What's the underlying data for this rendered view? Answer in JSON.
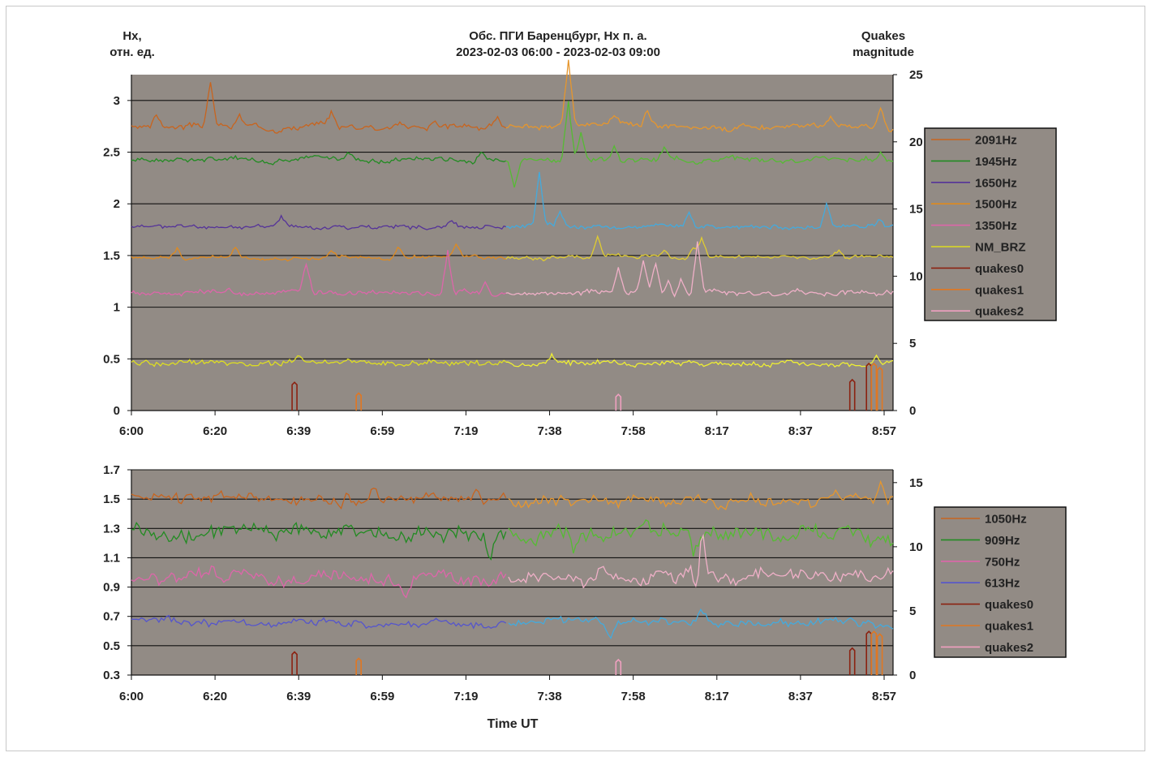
{
  "header": {
    "left_label_1": "Hx,",
    "left_label_2": "отн. ед.",
    "title_1": "Обс. ПГИ Баренцбург,  Hx п. а.",
    "title_2": "2023-02-03 06:00 - 2023-02-03 09:00",
    "right_label_1": "Quakes",
    "right_label_2": "magnitude"
  },
  "footer": {
    "xlabel": "Time UT"
  },
  "chart_data": [
    {
      "type": "line",
      "x_tick_labels": [
        "6:00",
        "6:20",
        "6:39",
        "6:59",
        "7:19",
        "7:38",
        "7:58",
        "8:17",
        "8:37",
        "8:57"
      ],
      "x_range_minutes": [
        0,
        183
      ],
      "ylim": [
        0,
        3.25
      ],
      "y_ticks": [
        0,
        0.5,
        1,
        1.5,
        2,
        2.5,
        3
      ],
      "y_tick_labels": [
        "0",
        "0.5",
        "1",
        "1.5",
        "2",
        "2.5",
        "3"
      ],
      "y2lim": [
        0,
        25
      ],
      "y2_ticks": [
        0,
        5,
        10,
        15,
        20,
        25
      ],
      "y2_tick_labels": [
        "0",
        "5",
        "10",
        "15",
        "20",
        "25"
      ],
      "legend": [
        "2091Hz",
        "1945Hz",
        "1650Hz",
        "1500Hz",
        "1350Hz",
        "NM_BRZ",
        "quakes0",
        "quakes1",
        "quakes2"
      ],
      "series": [
        {
          "name": "2091Hz",
          "base": 2.75,
          "amp": 0.035,
          "color": "#c8641e",
          "color2": "#e6962d",
          "seed": 3,
          "spikes": [
            [
              6,
              0.13
            ],
            [
              19,
              0.42
            ],
            [
              26,
              0.1
            ],
            [
              48,
              0.13
            ],
            [
              73,
              0.08
            ],
            [
              88,
              0.07
            ],
            [
              105,
              0.6
            ],
            [
              116,
              0.09
            ],
            [
              124,
              0.15
            ],
            [
              168,
              0.08
            ],
            [
              180,
              0.18
            ]
          ]
        },
        {
          "name": "1945Hz",
          "base": 2.43,
          "amp": 0.03,
          "color": "#228b22",
          "color2": "#55bb33",
          "seed": 7,
          "spikes": [
            [
              52,
              0.08
            ],
            [
              84,
              0.08
            ],
            [
              92,
              -0.25
            ],
            [
              105,
              0.55
            ],
            [
              108,
              0.25
            ],
            [
              116,
              0.15
            ],
            [
              128,
              0.12
            ],
            [
              180,
              0.08
            ]
          ]
        },
        {
          "name": "1650Hz",
          "base": 1.78,
          "amp": 0.025,
          "color": "#553399",
          "color2": "#44aadd",
          "seed": 11,
          "spikes": [
            [
              36,
              0.1
            ],
            [
              77,
              0.06
            ],
            [
              98,
              0.5
            ],
            [
              103,
              0.15
            ],
            [
              134,
              0.13
            ],
            [
              167,
              0.22
            ],
            [
              180,
              0.07
            ]
          ]
        },
        {
          "name": "1500Hz",
          "base": 1.48,
          "amp": 0.022,
          "color": "#e08a1e",
          "color2": "#e0cc30",
          "seed": 13,
          "spikes": [
            [
              11,
              0.1
            ],
            [
              25,
              0.1
            ],
            [
              48,
              0.08
            ],
            [
              64,
              0.1
            ],
            [
              78,
              0.12
            ],
            [
              112,
              0.2
            ],
            [
              128,
              0.08
            ],
            [
              135,
              0.1
            ],
            [
              137,
              0.18
            ],
            [
              170,
              0.06
            ]
          ]
        },
        {
          "name": "1350Hz",
          "base": 1.14,
          "amp": 0.03,
          "color": "#dd66aa",
          "color2": "#f0b0c8",
          "seed": 17,
          "spikes": [
            [
              42,
              0.28
            ],
            [
              76,
              0.42
            ],
            [
              85,
              0.12
            ],
            [
              117,
              0.22
            ],
            [
              123,
              0.3
            ],
            [
              126,
              0.28
            ],
            [
              129,
              0.15
            ],
            [
              132,
              0.15
            ],
            [
              136,
              0.5
            ]
          ]
        },
        {
          "name": "NM_BRZ",
          "base": 0.46,
          "amp": 0.035,
          "color": "#dddd22",
          "color2": "#eeee33",
          "seed": 19,
          "spikes": [
            [
              40,
              0.07
            ],
            [
              101,
              0.09
            ],
            [
              179,
              0.11
            ]
          ]
        }
      ],
      "quakes": [
        {
          "name": "quakes0",
          "color": "#8b2211",
          "events": [
            [
              39.2,
              2.1
            ],
            [
              173.2,
              2.3
            ],
            [
              177.2,
              3.5
            ]
          ]
        },
        {
          "name": "quakes1",
          "color": "#e07722",
          "events": [
            [
              54.6,
              1.3
            ],
            [
              178.4,
              3.5
            ],
            [
              179.8,
              3.2
            ]
          ]
        },
        {
          "name": "quakes2",
          "color": "#f0a0c0",
          "events": [
            [
              117,
              1.2
            ]
          ]
        }
      ]
    },
    {
      "type": "line",
      "x_tick_labels": [
        "6:00",
        "6:20",
        "6:39",
        "6:59",
        "7:19",
        "7:38",
        "7:58",
        "8:17",
        "8:37",
        "8:57"
      ],
      "x_range_minutes": [
        0,
        183
      ],
      "ylim": [
        0.3,
        1.7
      ],
      "y_ticks": [
        0.3,
        0.5,
        0.7,
        0.9,
        1.1,
        1.3,
        1.5,
        1.7
      ],
      "y_tick_labels": [
        "0.3",
        "0.5",
        "0.7",
        "0.9",
        "1.1",
        "1.3",
        "1.5",
        "1.7"
      ],
      "y2lim": [
        0,
        16
      ],
      "y2_ticks": [
        0,
        5,
        10,
        15
      ],
      "y2_tick_labels": [
        "0",
        "5",
        "10",
        "15"
      ],
      "legend": [
        "1050Hz",
        "909Hz",
        "750Hz",
        "613Hz",
        "quakes0",
        "quakes1",
        "quakes2"
      ],
      "series": [
        {
          "name": "1050Hz",
          "base": 1.5,
          "amp": 0.05,
          "color": "#c8641e",
          "color2": "#e6962d",
          "seed": 23,
          "spikes": [
            [
              52,
              0.12
            ],
            [
              58,
              0.1
            ],
            [
              83,
              0.08
            ],
            [
              180,
              0.12
            ]
          ]
        },
        {
          "name": "909Hz",
          "base": 1.26,
          "amp": 0.07,
          "color": "#228b22",
          "color2": "#55bb33",
          "seed": 29,
          "spikes": [
            [
              86,
              -0.18
            ],
            [
              106,
              -0.12
            ],
            [
              135,
              -0.15
            ]
          ]
        },
        {
          "name": "750Hz",
          "base": 0.96,
          "amp": 0.06,
          "color": "#dd66aa",
          "color2": "#f0b0c8",
          "seed": 31,
          "spikes": [
            [
              66,
              -0.12
            ],
            [
              113,
              0.12
            ],
            [
              136,
              -0.16
            ],
            [
              137,
              0.32
            ]
          ]
        },
        {
          "name": "613Hz",
          "base": 0.66,
          "amp": 0.035,
          "color": "#5555cc",
          "color2": "#44aadd",
          "seed": 37,
          "spikes": [
            [
              115,
              -0.12
            ],
            [
              137,
              0.1
            ]
          ]
        }
      ],
      "quakes": [
        {
          "name": "quakes0",
          "color": "#8b2211",
          "events": [
            [
              39.2,
              1.8
            ],
            [
              173.2,
              2.1
            ],
            [
              177.2,
              3.4
            ]
          ]
        },
        {
          "name": "quakes1",
          "color": "#e07722",
          "events": [
            [
              54.6,
              1.3
            ],
            [
              178.4,
              3.4
            ],
            [
              179.8,
              3.2
            ]
          ]
        },
        {
          "name": "quakes2",
          "color": "#f0a0c0",
          "events": [
            [
              117,
              1.2
            ]
          ]
        }
      ]
    }
  ]
}
